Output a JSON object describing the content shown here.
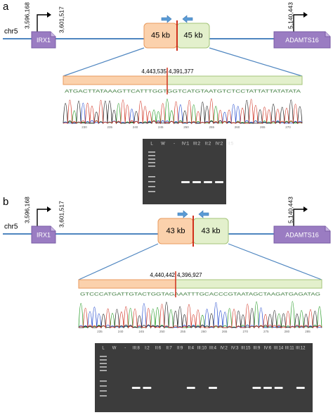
{
  "panels": [
    {
      "label": "a",
      "chromosome": "chr5",
      "gene_left": {
        "name": "IRX1",
        "start": "3,596,168",
        "end": "3,601,517"
      },
      "deletion": {
        "left": "45 kb",
        "right": "45 kb"
      },
      "gene_right": {
        "name": "ADAMTS16",
        "start": "5,140,443"
      },
      "breakpoint": {
        "left": "4,443,535",
        "right": "4,391,377"
      },
      "sequence": "ATGACTTATAAAGTTCATTTGGTGGTCATGTAATGTCTCCTATTATTATATATA",
      "trace_ticks": [
        "230",
        "235",
        "240",
        "245",
        "250",
        "255",
        "260",
        "265",
        "270"
      ],
      "gel_lanes": [
        {
          "label": "L",
          "band": false
        },
        {
          "label": "W",
          "band": false
        },
        {
          "label": "-",
          "band": false
        },
        {
          "label": "IV:1",
          "band": true
        },
        {
          "label": "III:2",
          "band": true
        },
        {
          "label": "II:2",
          "band": true
        },
        {
          "label": "IV:2",
          "band": true
        },
        {
          "label": "II:5",
          "band": false
        }
      ]
    },
    {
      "label": "b",
      "chromosome": "chr5",
      "gene_left": {
        "name": "IRX1",
        "start": "3,596,168",
        "end": "3,601,517"
      },
      "deletion": {
        "left": "43 kb",
        "right": "43 kb"
      },
      "gene_right": {
        "name": "ADAMTS16",
        "start": "5,140,443"
      },
      "breakpoint": {
        "left": "4,440,442",
        "right": "4,396,927"
      },
      "sequence": "GTCCCATGATTGTACTGGTAGAAATTTGCACCCGTAATAGCTAAGATGAGATAG",
      "trace_ticks": [
        "235",
        "240",
        "245",
        "250",
        "255",
        "260",
        "265",
        "270",
        "275",
        "280",
        "285"
      ],
      "gel_lanes": [
        {
          "label": "L",
          "band": false
        },
        {
          "label": "W",
          "band": false
        },
        {
          "label": "-",
          "band": false
        },
        {
          "label": "III:8",
          "band": true
        },
        {
          "label": "I:2",
          "band": true
        },
        {
          "label": "II:6",
          "band": false
        },
        {
          "label": "II:7",
          "band": false
        },
        {
          "label": "II:9",
          "band": false
        },
        {
          "label": "II:4",
          "band": true
        },
        {
          "label": "III:10",
          "band": false
        },
        {
          "label": "III:4",
          "band": true
        },
        {
          "label": "IV:2",
          "band": false
        },
        {
          "label": "IV:3",
          "band": false
        },
        {
          "label": "III:15",
          "band": false
        },
        {
          "label": "III:9",
          "band": true
        },
        {
          "label": "IV:6",
          "band": true
        },
        {
          "label": "III:14",
          "band": true
        },
        {
          "label": "III:11",
          "band": false
        },
        {
          "label": "III:12",
          "band": true
        }
      ]
    }
  ]
}
